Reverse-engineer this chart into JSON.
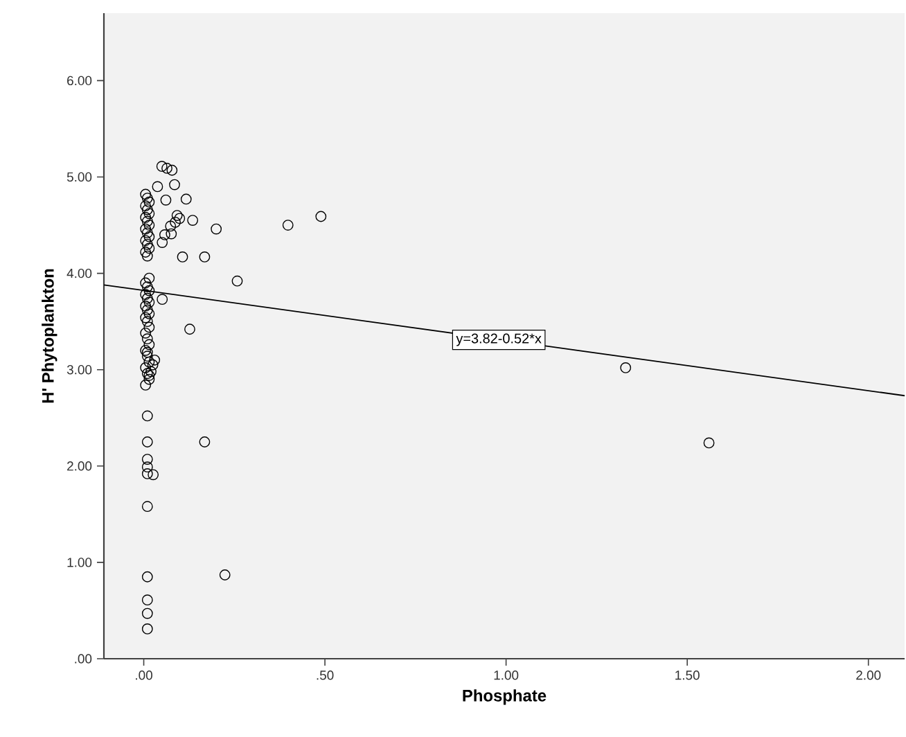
{
  "chart_data": {
    "type": "scatter",
    "xlabel": "Phosphate",
    "ylabel": "H' Phytoplankton",
    "xlim": [
      -0.11,
      2.1
    ],
    "ylim": [
      0,
      6.7
    ],
    "xticks": [
      {
        "value": 0,
        "label": ".00"
      },
      {
        "value": 0.5,
        "label": ".50"
      },
      {
        "value": 1,
        "label": "1.00"
      },
      {
        "value": 1.5,
        "label": "1.50"
      },
      {
        "value": 2,
        "label": "2.00"
      }
    ],
    "yticks": [
      {
        "value": 0,
        "label": ".00"
      },
      {
        "value": 1,
        "label": "1.00"
      },
      {
        "value": 2,
        "label": "2.00"
      },
      {
        "value": 3,
        "label": "3.00"
      },
      {
        "value": 4,
        "label": "4.00"
      },
      {
        "value": 5,
        "label": "5.00"
      },
      {
        "value": 6,
        "label": "6.00"
      }
    ],
    "grid": false,
    "annotations": [
      {
        "text": "y=3.82-0.52*x",
        "x": 0.98,
        "y": 3.31
      }
    ],
    "series": [
      {
        "color": "#000000",
        "marker": "circle",
        "x": [
          0.05,
          0.064,
          0.078,
          0.085,
          0.117,
          0.061,
          0.038,
          0.135,
          0.092,
          0.099,
          0.087,
          0.074,
          0.076,
          0.058,
          0.051,
          0.2,
          0.398,
          0.489,
          0.107,
          0.168,
          0.258,
          0.051,
          0.127,
          0.168,
          0.224,
          0.026,
          1.33,
          1.56,
          0.01,
          0.01,
          0.01,
          0.01,
          0.01,
          0.01,
          0.01,
          0.01,
          0.01,
          0.01,
          0.005,
          0.01,
          0.015,
          0.005,
          0.01,
          0.015,
          0.005,
          0.01,
          0.015,
          0.005,
          0.01,
          0.015,
          0.005,
          0.01,
          0.015,
          0.005,
          0.01,
          0.015,
          0.005,
          0.01,
          0.015,
          0.005,
          0.01,
          0.015,
          0.005,
          0.01,
          0.015,
          0.005,
          0.01,
          0.015,
          0.005,
          0.01,
          0.015,
          0.005,
          0.01,
          0.015,
          0.005,
          0.01,
          0.015,
          0.005,
          0.01,
          0.025,
          0.03,
          0.02,
          0.015
        ],
        "values": [
          5.11,
          5.09,
          5.07,
          4.92,
          4.77,
          4.76,
          4.9,
          4.55,
          4.6,
          4.57,
          4.53,
          4.49,
          4.41,
          4.4,
          4.32,
          4.46,
          4.5,
          4.59,
          4.17,
          4.17,
          3.92,
          3.73,
          3.42,
          2.25,
          0.87,
          1.91,
          3.02,
          2.24,
          2.52,
          2.25,
          2.07,
          1.99,
          1.92,
          1.58,
          0.85,
          0.61,
          0.47,
          0.31,
          4.82,
          4.78,
          4.74,
          4.7,
          4.66,
          4.62,
          4.58,
          4.54,
          4.5,
          4.46,
          4.42,
          4.38,
          4.34,
          4.3,
          4.26,
          4.22,
          4.18,
          3.95,
          3.9,
          3.86,
          3.82,
          3.78,
          3.74,
          3.7,
          3.66,
          3.62,
          3.58,
          3.54,
          3.5,
          3.44,
          3.38,
          3.32,
          3.26,
          3.2,
          3.14,
          3.08,
          3.02,
          2.96,
          2.9,
          2.84,
          3.18,
          3.05,
          3.1,
          2.98,
          2.94
        ]
      },
      {
        "type": "line",
        "color": "#000000",
        "marker": "none",
        "x": [
          -0.11,
          2.1
        ],
        "values": [
          3.88,
          2.73
        ]
      }
    ]
  }
}
